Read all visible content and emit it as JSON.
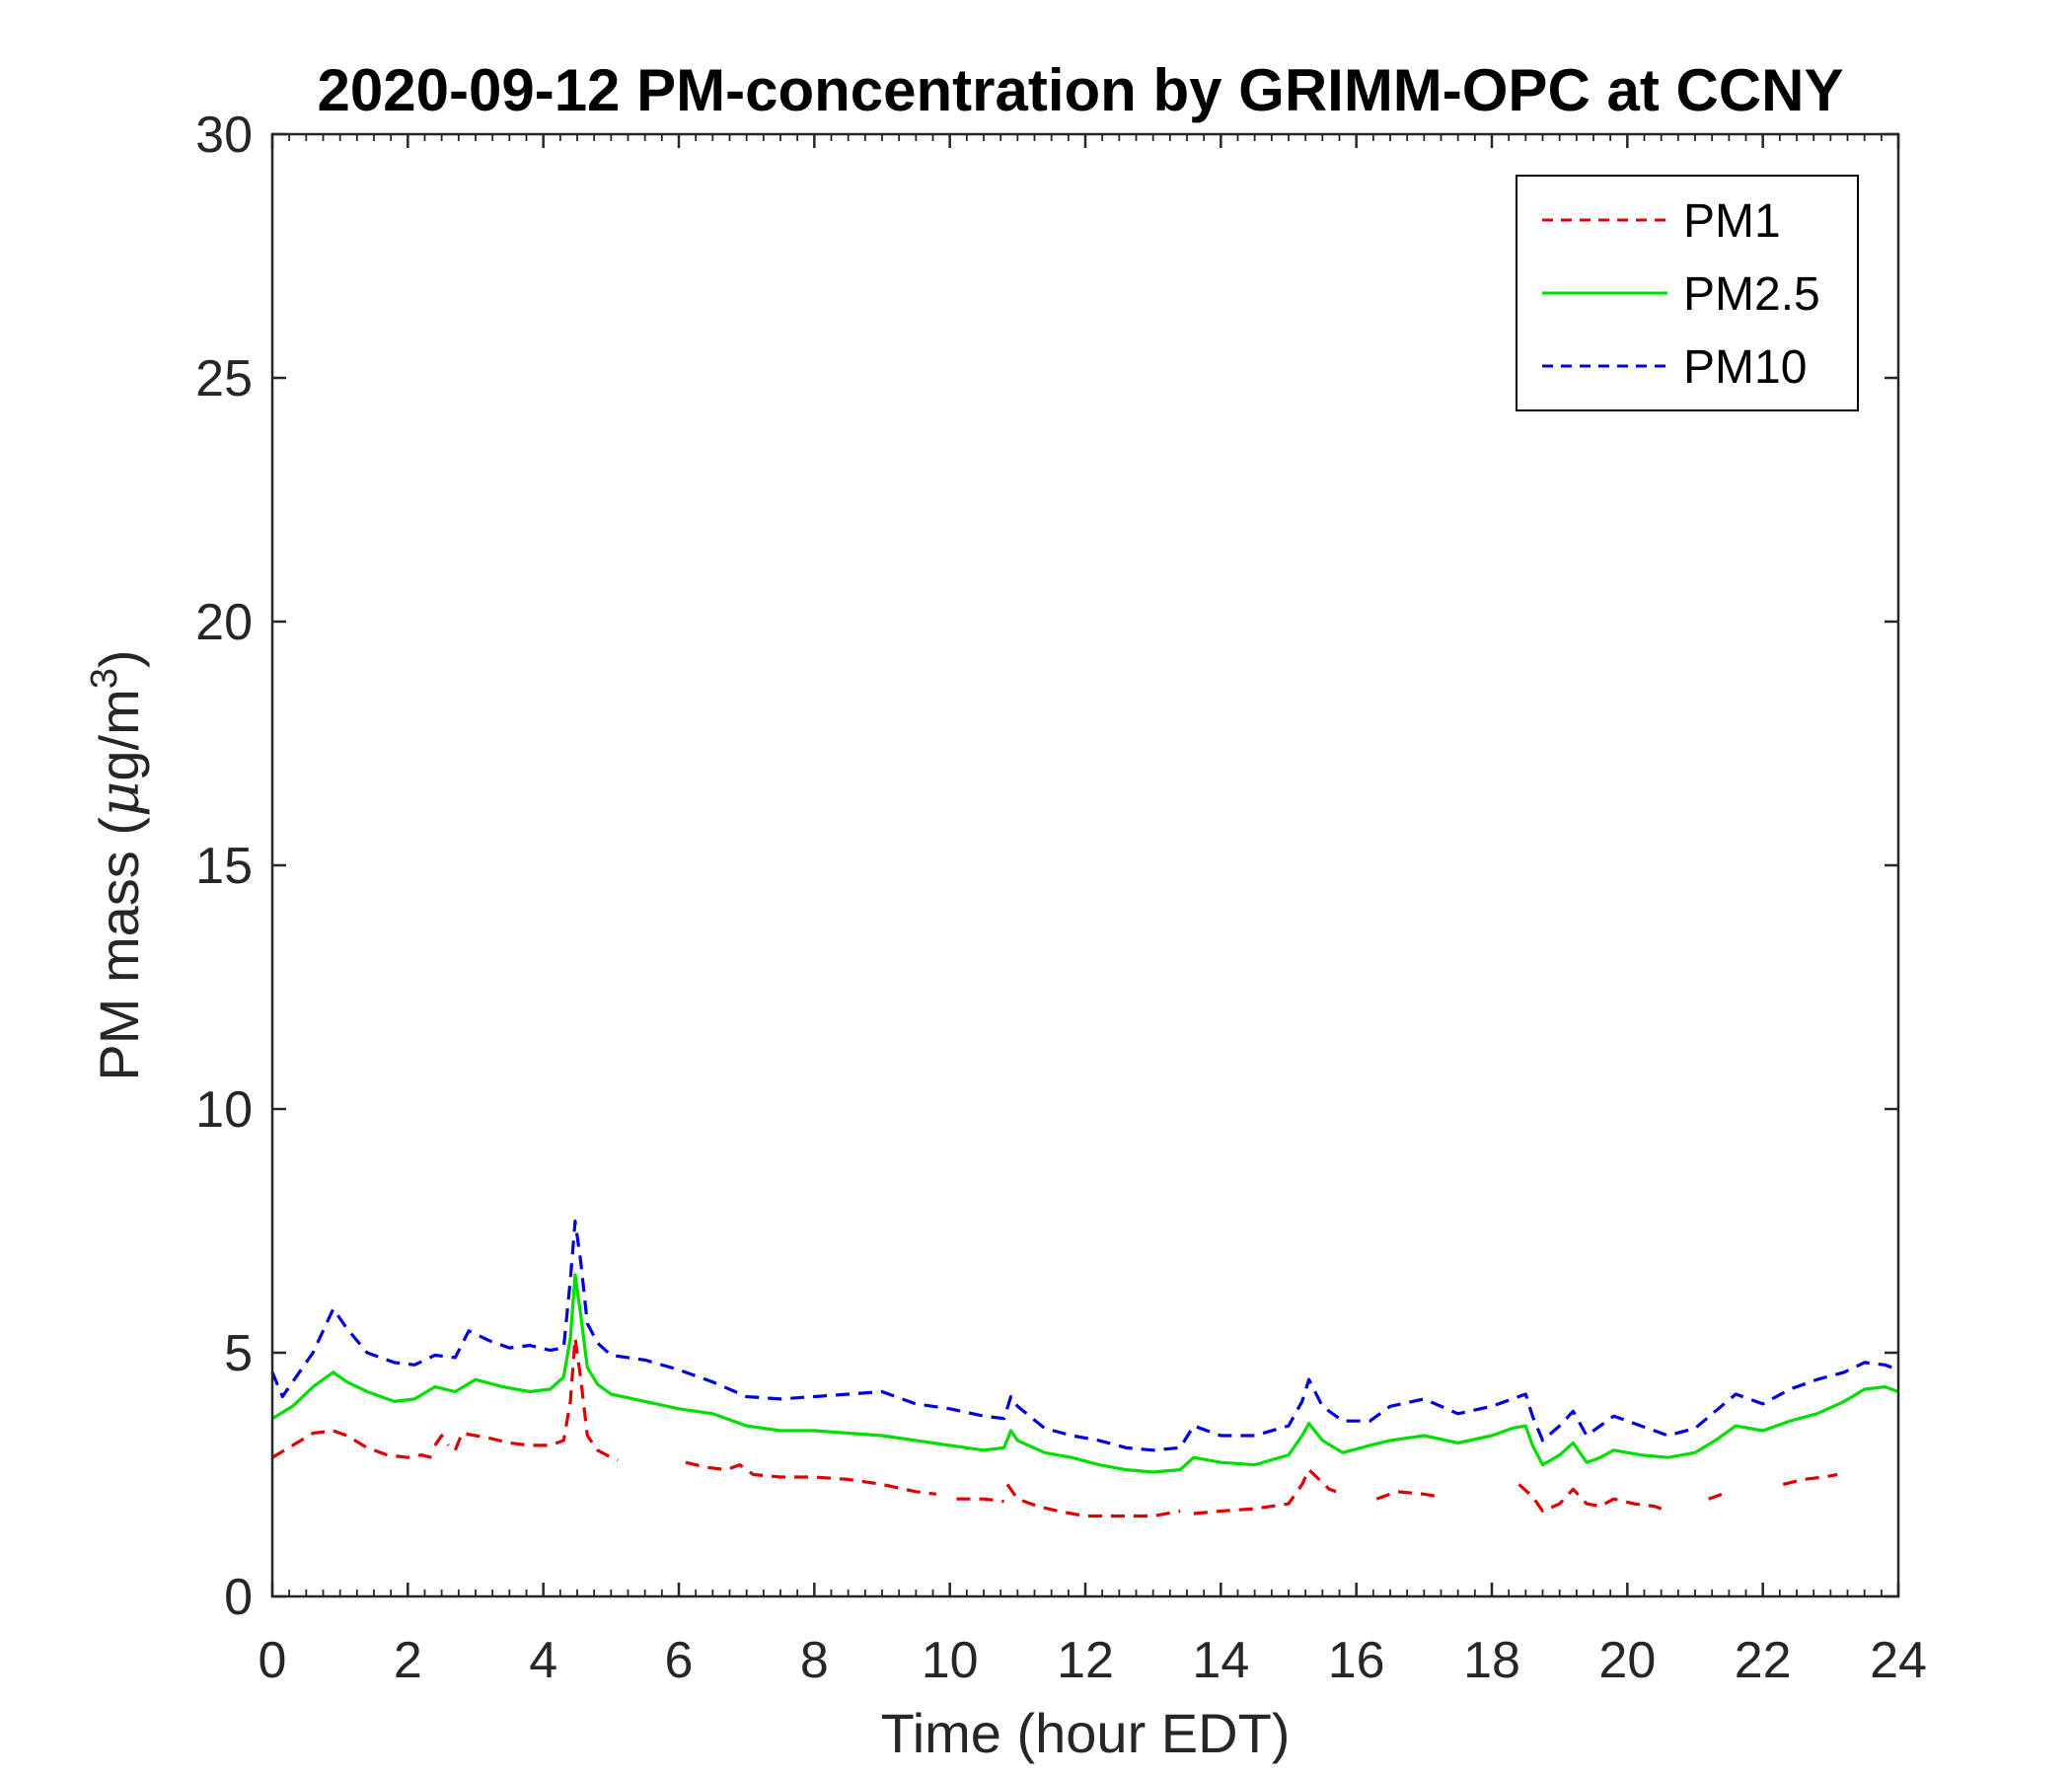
{
  "chart_data": {
    "type": "line",
    "title": "2020-09-12 PM-concentration by GRIMM-OPC at CCNY",
    "xlabel": "Time (hour EDT)",
    "ylabel": "PM mass (μg/m³)",
    "ylabel_parts": {
      "main": "PM mass (",
      "mu": "μ",
      "unit": "g/m",
      "sup": "3",
      "close": ")"
    },
    "xlim": [
      0,
      24
    ],
    "ylim": [
      0,
      30
    ],
    "xticks": [
      0,
      2,
      4,
      6,
      8,
      10,
      12,
      14,
      16,
      18,
      20,
      22,
      24
    ],
    "yticks": [
      0,
      5,
      10,
      15,
      20,
      25,
      30
    ],
    "grid": false,
    "legend_position": "top-right",
    "series": [
      {
        "name": "PM1",
        "color": "#dd0000",
        "dash": "dashed",
        "segments": [
          [
            [
              0,
              2.85
            ],
            [
              0.3,
              3.1
            ],
            [
              0.6,
              3.35
            ],
            [
              0.9,
              3.4
            ],
            [
              1.1,
              3.3
            ],
            [
              1.4,
              3.05
            ],
            [
              1.7,
              2.9
            ],
            [
              2.0,
              2.85
            ],
            [
              2.2,
              2.9
            ],
            [
              2.35,
              2.85
            ]
          ],
          [
            [
              2.4,
              3.1
            ],
            [
              2.5,
              3.3
            ],
            [
              2.6,
              3.1
            ]
          ],
          [
            [
              2.7,
              3.0
            ],
            [
              2.8,
              3.35
            ],
            [
              3.0,
              3.3
            ],
            [
              3.2,
              3.25
            ],
            [
              3.5,
              3.15
            ],
            [
              3.8,
              3.1
            ],
            [
              4.1,
              3.1
            ],
            [
              4.3,
              3.2
            ],
            [
              4.4,
              4.0
            ],
            [
              4.47,
              5.3
            ],
            [
              4.55,
              4.5
            ],
            [
              4.65,
              3.3
            ],
            [
              4.8,
              3.0
            ],
            [
              5.0,
              2.85
            ],
            [
              5.1,
              2.8
            ]
          ],
          [
            [
              6.1,
              2.75
            ],
            [
              6.4,
              2.65
            ],
            [
              6.7,
              2.6
            ],
            [
              6.9,
              2.7
            ],
            [
              7.1,
              2.5
            ],
            [
              7.5,
              2.45
            ],
            [
              8.0,
              2.45
            ],
            [
              8.5,
              2.4
            ],
            [
              9.0,
              2.3
            ],
            [
              9.5,
              2.15
            ],
            [
              9.8,
              2.1
            ]
          ],
          [
            [
              10.1,
              2.0
            ],
            [
              10.5,
              2.0
            ],
            [
              10.8,
              1.95
            ]
          ],
          [
            [
              10.85,
              2.3
            ],
            [
              11.0,
              2.0
            ],
            [
              11.3,
              1.85
            ],
            [
              11.6,
              1.75
            ],
            [
              12.0,
              1.65
            ],
            [
              12.5,
              1.65
            ],
            [
              13.0,
              1.65
            ],
            [
              13.4,
              1.75
            ]
          ],
          [
            [
              13.6,
              1.7
            ],
            [
              14.0,
              1.75
            ],
            [
              14.5,
              1.8
            ],
            [
              15.0,
              1.9
            ],
            [
              15.2,
              2.3
            ],
            [
              15.3,
              2.6
            ],
            [
              15.45,
              2.4
            ],
            [
              15.6,
              2.2
            ],
            [
              15.7,
              2.15
            ]
          ],
          [
            [
              16.3,
              2.0
            ],
            [
              16.6,
              2.15
            ],
            [
              17.0,
              2.1
            ],
            [
              17.2,
              2.05
            ]
          ],
          [
            [
              18.4,
              2.3
            ],
            [
              18.6,
              2.05
            ],
            [
              18.75,
              1.75
            ],
            [
              19.0,
              1.9
            ],
            [
              19.2,
              2.2
            ],
            [
              19.4,
              1.9
            ],
            [
              19.6,
              1.85
            ],
            [
              19.8,
              2.0
            ],
            [
              20.1,
              1.9
            ],
            [
              20.4,
              1.85
            ],
            [
              20.5,
              1.8
            ]
          ],
          [
            [
              21.2,
              2.0
            ],
            [
              21.4,
              2.1
            ]
          ],
          [
            [
              22.3,
              2.3
            ],
            [
              22.6,
              2.4
            ],
            [
              22.9,
              2.45
            ],
            [
              23.1,
              2.5
            ]
          ]
        ]
      },
      {
        "name": "PM2.5",
        "color": "#00dd00",
        "dash": "solid",
        "segments": [
          [
            [
              0,
              3.65
            ],
            [
              0.3,
              3.9
            ],
            [
              0.6,
              4.3
            ],
            [
              0.9,
              4.6
            ],
            [
              1.1,
              4.4
            ],
            [
              1.4,
              4.2
            ],
            [
              1.8,
              4.0
            ],
            [
              2.1,
              4.05
            ],
            [
              2.4,
              4.3
            ],
            [
              2.7,
              4.2
            ],
            [
              3.0,
              4.45
            ],
            [
              3.4,
              4.3
            ],
            [
              3.8,
              4.2
            ],
            [
              4.1,
              4.25
            ],
            [
              4.3,
              4.5
            ],
            [
              4.4,
              5.3
            ],
            [
              4.47,
              6.6
            ],
            [
              4.55,
              5.8
            ],
            [
              4.65,
              4.7
            ],
            [
              4.8,
              4.35
            ],
            [
              5.0,
              4.15
            ],
            [
              5.5,
              4.0
            ],
            [
              6.0,
              3.85
            ],
            [
              6.5,
              3.75
            ],
            [
              7.0,
              3.5
            ],
            [
              7.5,
              3.4
            ],
            [
              8.0,
              3.4
            ],
            [
              8.5,
              3.35
            ],
            [
              9.0,
              3.3
            ],
            [
              9.5,
              3.2
            ],
            [
              10.0,
              3.1
            ],
            [
              10.5,
              3.0
            ],
            [
              10.8,
              3.05
            ],
            [
              10.9,
              3.4
            ],
            [
              11.0,
              3.2
            ],
            [
              11.4,
              2.95
            ],
            [
              11.8,
              2.85
            ],
            [
              12.2,
              2.7
            ],
            [
              12.6,
              2.6
            ],
            [
              13.0,
              2.55
            ],
            [
              13.4,
              2.6
            ],
            [
              13.6,
              2.85
            ],
            [
              14.0,
              2.75
            ],
            [
              14.5,
              2.7
            ],
            [
              15.0,
              2.9
            ],
            [
              15.2,
              3.3
            ],
            [
              15.3,
              3.55
            ],
            [
              15.5,
              3.2
            ],
            [
              15.8,
              2.95
            ],
            [
              16.2,
              3.1
            ],
            [
              16.5,
              3.2
            ],
            [
              17.0,
              3.3
            ],
            [
              17.5,
              3.15
            ],
            [
              18.0,
              3.3
            ],
            [
              18.3,
              3.45
            ],
            [
              18.5,
              3.5
            ],
            [
              18.6,
              3.1
            ],
            [
              18.75,
              2.7
            ],
            [
              19.0,
              2.9
            ],
            [
              19.2,
              3.15
            ],
            [
              19.4,
              2.75
            ],
            [
              19.6,
              2.85
            ],
            [
              19.8,
              3.0
            ],
            [
              20.2,
              2.9
            ],
            [
              20.6,
              2.85
            ],
            [
              21.0,
              2.95
            ],
            [
              21.3,
              3.2
            ],
            [
              21.6,
              3.5
            ],
            [
              22.0,
              3.4
            ],
            [
              22.4,
              3.6
            ],
            [
              22.8,
              3.75
            ],
            [
              23.2,
              4.0
            ],
            [
              23.5,
              4.25
            ],
            [
              23.8,
              4.3
            ],
            [
              24.0,
              4.2
            ]
          ]
        ]
      },
      {
        "name": "PM10",
        "color": "#0000dd",
        "dash": "dashed",
        "segments": [
          [
            [
              0,
              4.6
            ],
            [
              0.15,
              4.1
            ],
            [
              0.3,
              4.4
            ],
            [
              0.6,
              5.0
            ],
            [
              0.9,
              5.9
            ],
            [
              1.1,
              5.5
            ],
            [
              1.4,
              5.0
            ],
            [
              1.8,
              4.8
            ],
            [
              2.1,
              4.75
            ],
            [
              2.4,
              4.95
            ],
            [
              2.7,
              4.9
            ],
            [
              2.9,
              5.45
            ],
            [
              3.2,
              5.25
            ],
            [
              3.5,
              5.1
            ],
            [
              3.8,
              5.15
            ],
            [
              4.1,
              5.05
            ],
            [
              4.3,
              5.1
            ],
            [
              4.4,
              6.5
            ],
            [
              4.47,
              7.7
            ],
            [
              4.55,
              6.9
            ],
            [
              4.65,
              5.6
            ],
            [
              4.8,
              5.2
            ],
            [
              5.0,
              4.95
            ],
            [
              5.5,
              4.85
            ],
            [
              6.0,
              4.65
            ],
            [
              6.5,
              4.4
            ],
            [
              7.0,
              4.1
            ],
            [
              7.5,
              4.05
            ],
            [
              8.0,
              4.1
            ],
            [
              8.5,
              4.15
            ],
            [
              9.0,
              4.2
            ],
            [
              9.5,
              3.95
            ],
            [
              10.0,
              3.85
            ],
            [
              10.5,
              3.7
            ],
            [
              10.8,
              3.65
            ],
            [
              10.9,
              4.1
            ],
            [
              11.0,
              3.9
            ],
            [
              11.4,
              3.45
            ],
            [
              11.8,
              3.3
            ],
            [
              12.2,
              3.2
            ],
            [
              12.6,
              3.05
            ],
            [
              13.0,
              3.0
            ],
            [
              13.4,
              3.05
            ],
            [
              13.6,
              3.5
            ],
            [
              14.0,
              3.3
            ],
            [
              14.5,
              3.3
            ],
            [
              15.0,
              3.5
            ],
            [
              15.2,
              4.0
            ],
            [
              15.3,
              4.45
            ],
            [
              15.5,
              3.9
            ],
            [
              15.8,
              3.6
            ],
            [
              16.2,
              3.6
            ],
            [
              16.5,
              3.9
            ],
            [
              17.0,
              4.05
            ],
            [
              17.5,
              3.75
            ],
            [
              18.0,
              3.9
            ],
            [
              18.3,
              4.05
            ],
            [
              18.5,
              4.15
            ],
            [
              18.6,
              3.7
            ],
            [
              18.75,
              3.2
            ],
            [
              19.0,
              3.5
            ],
            [
              19.2,
              3.8
            ],
            [
              19.4,
              3.3
            ],
            [
              19.6,
              3.5
            ],
            [
              19.8,
              3.7
            ],
            [
              20.2,
              3.5
            ],
            [
              20.6,
              3.3
            ],
            [
              21.0,
              3.45
            ],
            [
              21.3,
              3.8
            ],
            [
              21.6,
              4.15
            ],
            [
              22.0,
              3.95
            ],
            [
              22.4,
              4.25
            ],
            [
              22.8,
              4.45
            ],
            [
              23.2,
              4.6
            ],
            [
              23.5,
              4.8
            ],
            [
              23.8,
              4.75
            ],
            [
              24.0,
              4.65
            ]
          ]
        ]
      }
    ]
  }
}
